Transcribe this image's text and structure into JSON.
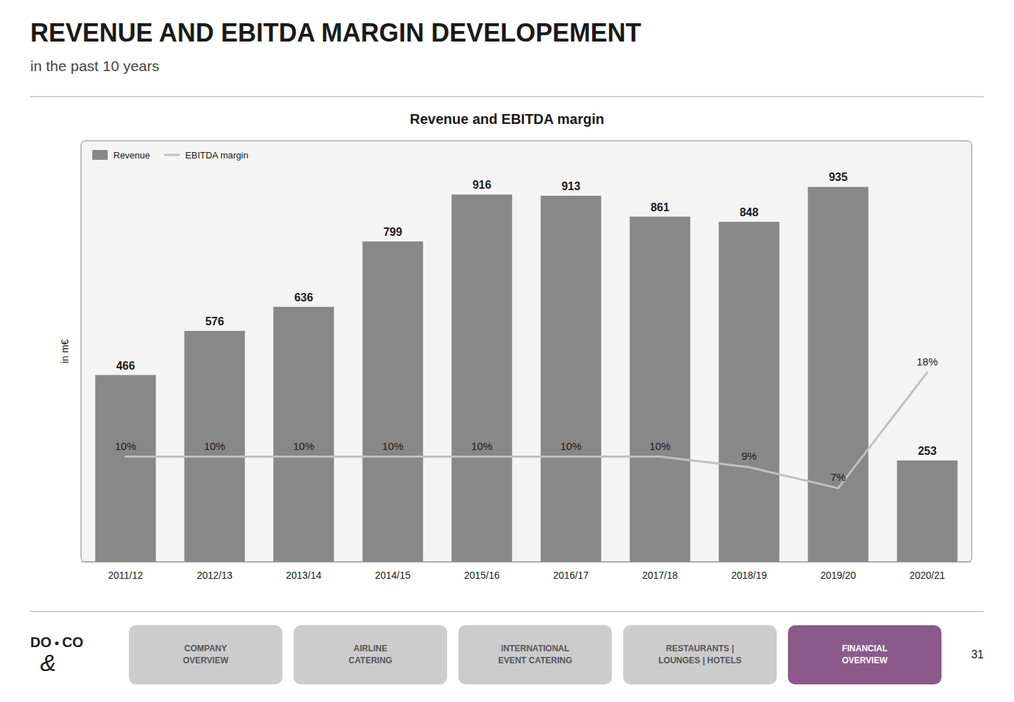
{
  "chart_data": {
    "type": "bar",
    "title": "Revenue and EBITDA margin",
    "ylabel": "in m€",
    "categories": [
      "2011/12",
      "2012/13",
      "2013/14",
      "2014/15",
      "2015/16",
      "2016/17",
      "2017/18",
      "2018/19",
      "2019/20",
      "2020/21"
    ],
    "series": [
      {
        "name": "Revenue",
        "type": "bar",
        "color": "#888888",
        "values": [
          466,
          576,
          636,
          799,
          916,
          913,
          861,
          848,
          935,
          253
        ]
      },
      {
        "name": "EBITDA margin",
        "type": "line",
        "color": "#c0c0c0",
        "axis": "y2",
        "values": [
          10,
          10,
          10,
          10,
          10,
          10,
          10,
          9,
          7,
          18
        ],
        "value_labels": [
          "10%",
          "10%",
          "10%",
          "10%",
          "10%",
          "10%",
          "10%",
          "9%",
          "7%",
          "18%"
        ]
      }
    ],
    "ylim": [
      0,
      1050
    ],
    "y2lim": [
      0,
      40
    ],
    "data_labels": true,
    "legend": "upper left",
    "grid": false,
    "tick_labels": "x"
  },
  "page": {
    "title": "REVENUE AND EBITDA MARGIN DEVELOPEMENT",
    "subtitle": "in the past 10 years",
    "logo": [
      "DO",
      "●",
      "CO",
      "&"
    ],
    "nav": [
      "COMPANY\nOVERVIEW",
      "AIRLINE\nCATERING",
      "INTERNATIONAL\nEVENT CATERING",
      "RESTAURANTS |\nLOUNGES | HOTELS",
      "FINANCIAL\nOVERVIEW"
    ],
    "nav_active": 4,
    "nav_active_color": "#8b5a8b",
    "nav_inactive_color": "#cccccc",
    "page_number": "31"
  }
}
